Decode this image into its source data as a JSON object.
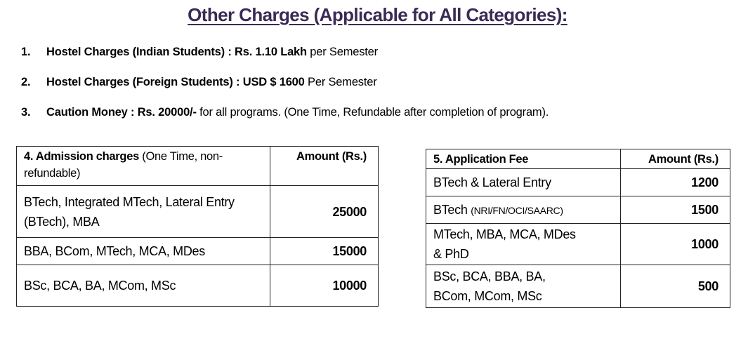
{
  "title": "Other Charges (Applicable for All Categories):",
  "items": [
    {
      "num": "1.",
      "label": "Hostel Charges (Indian Students)   :",
      "value": "Rs. 1.10 Lakh",
      "suffix": "per Semester"
    },
    {
      "num": "2.",
      "label": "Hostel Charges (Foreign Students) :",
      "value": "USD $ 1600",
      "suffix": "Per Semester"
    },
    {
      "num": "3.",
      "label": "Caution Money :",
      "value": "Rs. 20000/-",
      "suffix": "for all programs. (One Time, Refundable after completion of program)."
    }
  ],
  "admission": {
    "header_bold": "4.  Admission charges",
    "header_normal": "(One Time, non-refundable)",
    "amount_header": "Amount (Rs.)",
    "rows": [
      {
        "program": "BTech, Integrated MTech, Lateral Entry (BTech), MBA",
        "amount": "25000"
      },
      {
        "program": "BBA, BCom, MTech, MCA, MDes",
        "amount": "15000"
      },
      {
        "program": "BSc, BCA, BA, MCom, MSc",
        "amount": "10000"
      }
    ]
  },
  "application": {
    "header": "5.  Application Fee",
    "amount_header": "Amount (Rs.)",
    "rows": [
      {
        "program": "BTech & Lateral Entry",
        "note": "",
        "amount": "1200"
      },
      {
        "program": "BTech",
        "note": "(NRI/FN/OCI/SAARC)",
        "amount": "1500"
      },
      {
        "program": "MTech, MBA, MCA, MDes & PhD",
        "note": "",
        "amount": "1000"
      },
      {
        "program": "BSc, BCA, BBA, BA, BCom, MCom, MSc",
        "note": "",
        "amount": "500"
      }
    ]
  }
}
